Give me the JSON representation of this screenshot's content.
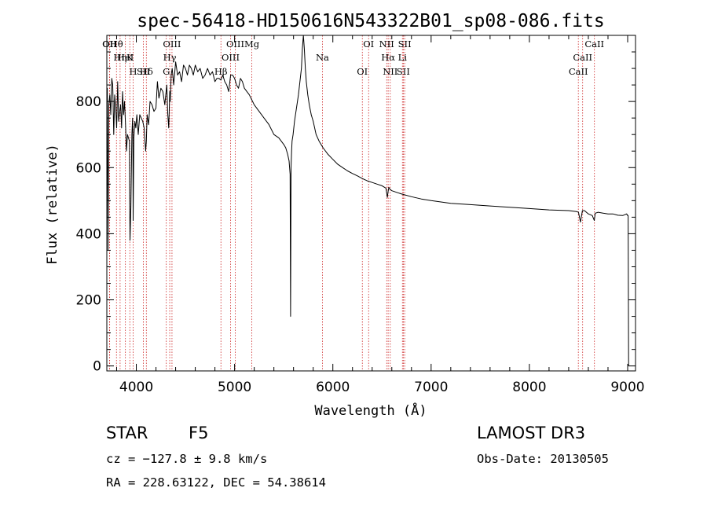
{
  "chart_data": {
    "type": "line",
    "title": "spec-56418-HD150616N543322B01_sp08-086.fits",
    "xlabel": "Wavelength (Å)",
    "ylabel": "Flux (relative)",
    "xlim": [
      3700,
      9080
    ],
    "ylim": [
      -15,
      1000
    ],
    "x_ticks": [
      4000,
      5000,
      6000,
      7000,
      8000,
      9000
    ],
    "y_ticks": [
      0,
      200,
      400,
      600,
      800
    ],
    "series": [
      {
        "name": "flux",
        "x": [
          3700,
          3705,
          3712,
          3720,
          3730,
          3740,
          3750,
          3760,
          3770,
          3780,
          3790,
          3800,
          3810,
          3820,
          3830,
          3840,
          3850,
          3860,
          3870,
          3880,
          3890,
          3900,
          3910,
          3920,
          3930,
          3933,
          3936,
          3945,
          3955,
          3962,
          3965,
          3968,
          3975,
          3985,
          3995,
          4005,
          4020,
          4035,
          4050,
          4065,
          4080,
          4095,
          4102,
          4110,
          4125,
          4140,
          4160,
          4180,
          4200,
          4215,
          4230,
          4250,
          4270,
          4290,
          4310,
          4320,
          4330,
          4340,
          4345,
          4355,
          4365,
          4380,
          4400,
          4420,
          4440,
          4460,
          4480,
          4500,
          4520,
          4540,
          4560,
          4580,
          4600,
          4625,
          4650,
          4675,
          4700,
          4725,
          4750,
          4775,
          4800,
          4820,
          4840,
          4861,
          4880,
          4900,
          4920,
          4940,
          4960,
          4980,
          5000,
          5020,
          5040,
          5060,
          5080,
          5100,
          5150,
          5200,
          5250,
          5300,
          5350,
          5400,
          5450,
          5500,
          5520,
          5540,
          5555,
          5565,
          5570,
          5575,
          5580,
          5585,
          5595,
          5610,
          5630,
          5650,
          5665,
          5680,
          5690,
          5700,
          5710,
          5720,
          5730,
          5745,
          5760,
          5780,
          5800,
          5830,
          5860,
          5900,
          5950,
          6000,
          6050,
          6100,
          6150,
          6200,
          6250,
          6300,
          6350,
          6400,
          6450,
          6500,
          6540,
          6555,
          6563,
          6570,
          6580,
          6600,
          6650,
          6700,
          6800,
          6900,
          7000,
          7200,
          7400,
          7600,
          7800,
          8000,
          8200,
          8400,
          8480,
          8500,
          8520,
          8540,
          8560,
          8600,
          8640,
          8660,
          8670,
          8700,
          8750,
          8800,
          8850,
          8900,
          8950,
          8990,
          9000,
          9005,
          9010
        ],
        "values": [
          800,
          840,
          350,
          790,
          820,
          760,
          870,
          850,
          700,
          820,
          780,
          720,
          860,
          740,
          770,
          790,
          720,
          830,
          760,
          800,
          730,
          650,
          700,
          690,
          680,
          500,
          380,
          480,
          700,
          750,
          720,
          440,
          690,
          740,
          720,
          760,
          700,
          760,
          750,
          740,
          720,
          650,
          680,
          760,
          730,
          800,
          790,
          770,
          780,
          860,
          810,
          840,
          830,
          790,
          850,
          760,
          720,
          830,
          800,
          880,
          900,
          850,
          920,
          880,
          890,
          860,
          910,
          900,
          880,
          910,
          900,
          880,
          910,
          890,
          900,
          870,
          880,
          900,
          880,
          890,
          860,
          870,
          870,
          865,
          880,
          860,
          850,
          830,
          880,
          880,
          870,
          850,
          840,
          870,
          860,
          840,
          820,
          790,
          770,
          750,
          730,
          700,
          690,
          670,
          660,
          640,
          620,
          580,
          150,
          600,
          650,
          680,
          700,
          740,
          780,
          820,
          860,
          900,
          960,
          1000,
          960,
          900,
          860,
          820,
          790,
          760,
          740,
          700,
          680,
          660,
          640,
          625,
          610,
          600,
          590,
          582,
          575,
          567,
          560,
          555,
          550,
          545,
          538,
          510,
          528,
          540,
          535,
          530,
          525,
          520,
          512,
          505,
          500,
          492,
          488,
          484,
          480,
          476,
          472,
          470,
          467,
          465,
          435,
          470,
          470,
          460,
          455,
          440,
          462,
          465,
          462,
          460,
          460,
          456,
          455,
          460,
          455,
          455,
          0
        ]
      }
    ],
    "spectral_lines": [
      {
        "label": "Hθ",
        "x": 3798
      },
      {
        "label": "K",
        "x": 3934
      },
      {
        "label": "Hδ",
        "x": 4102
      },
      {
        "label": "OII",
        "x": 3727
      },
      {
        "label": "HeI",
        "x": 3889
      },
      {
        "label": "SII",
        "x": 4072
      },
      {
        "label": "OIII",
        "x": 4363
      },
      {
        "label": "Hγ",
        "x": 4340
      },
      {
        "label": "G",
        "x": 4305
      },
      {
        "label": "OII",
        "x": 3729
      },
      {
        "label": "Hη",
        "x": 3835
      },
      {
        "label": "H",
        "x": 3968
      },
      {
        "label": "OIII",
        "x": 5007
      },
      {
        "label": "OIII",
        "x": 4959
      },
      {
        "label": "Hβ",
        "x": 4861
      },
      {
        "label": "Mg",
        "x": 5175
      },
      {
        "label": "Na",
        "x": 5894
      },
      {
        "label": "OI",
        "x": 6300
      },
      {
        "label": "OI",
        "x": 6364
      },
      {
        "label": "Hα",
        "x": 6563
      },
      {
        "label": "SII",
        "x": 6717
      },
      {
        "label": "NII",
        "x": 6548
      },
      {
        "label": "Li",
        "x": 6708
      },
      {
        "label": "NII",
        "x": 6584
      },
      {
        "label": "SII",
        "x": 6731
      },
      {
        "label": "CaII",
        "x": 8542
      },
      {
        "label": "CaII",
        "x": 8498
      },
      {
        "label": "CaII",
        "x": 8662
      }
    ]
  },
  "info": {
    "class_label": "STAR",
    "subclass": "F5",
    "survey": "LAMOST DR3",
    "cz": "cz = −127.8 ± 9.8 km/s",
    "obs_date": "Obs-Date: 20130505",
    "coords": "RA = 228.63122, DEC =  54.38614"
  }
}
